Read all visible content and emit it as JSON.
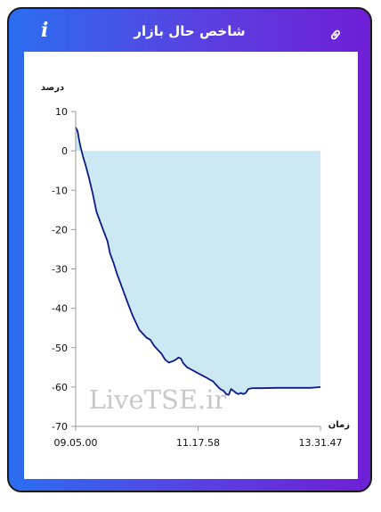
{
  "header": {
    "title": "شاخص حال بازار",
    "info_icon": "info-icon",
    "link_icon": "link-icon"
  },
  "colors": {
    "accent_start": "#2b6ef0",
    "accent_end": "#6e1fd6",
    "line": "#0d1a8c",
    "area": "#cce8f2"
  },
  "watermark": "LiveTSE.ir",
  "chart_data": {
    "type": "area",
    "ylabel": "درصد",
    "xlabel": "زمان",
    "ylim": [
      -70,
      10
    ],
    "yticks": [
      10,
      0,
      -10,
      -20,
      -30,
      -40,
      -50,
      -60,
      -70
    ],
    "xticks": [
      "09.05.00",
      "11.17.58",
      "13.31.47"
    ],
    "xlim": [
      0,
      1
    ],
    "grid": false,
    "legend": "none",
    "baseline": 0,
    "series": [
      {
        "points": [
          [
            0.0,
            6.0
          ],
          [
            0.008,
            5.0
          ],
          [
            0.015,
            2.5
          ],
          [
            0.022,
            0.5
          ],
          [
            0.03,
            -1.5
          ],
          [
            0.04,
            -3.5
          ],
          [
            0.055,
            -7.0
          ],
          [
            0.07,
            -11.0
          ],
          [
            0.085,
            -15.5
          ],
          [
            0.1,
            -18.0
          ],
          [
            0.115,
            -20.5
          ],
          [
            0.13,
            -23.0
          ],
          [
            0.14,
            -26.0
          ],
          [
            0.155,
            -28.5
          ],
          [
            0.17,
            -31.5
          ],
          [
            0.185,
            -34.0
          ],
          [
            0.2,
            -36.5
          ],
          [
            0.215,
            -39.0
          ],
          [
            0.23,
            -41.5
          ],
          [
            0.245,
            -43.5
          ],
          [
            0.26,
            -45.5
          ],
          [
            0.275,
            -46.5
          ],
          [
            0.29,
            -47.5
          ],
          [
            0.305,
            -48.0
          ],
          [
            0.32,
            -49.5
          ],
          [
            0.335,
            -50.5
          ],
          [
            0.35,
            -51.5
          ],
          [
            0.365,
            -53.0
          ],
          [
            0.38,
            -53.8
          ],
          [
            0.395,
            -53.5
          ],
          [
            0.41,
            -53.0
          ],
          [
            0.42,
            -52.5
          ],
          [
            0.43,
            -52.8
          ],
          [
            0.44,
            -54.0
          ],
          [
            0.455,
            -55.0
          ],
          [
            0.47,
            -55.5
          ],
          [
            0.485,
            -56.0
          ],
          [
            0.5,
            -56.5
          ],
          [
            0.515,
            -57.0
          ],
          [
            0.53,
            -57.5
          ],
          [
            0.545,
            -58.0
          ],
          [
            0.56,
            -58.5
          ],
          [
            0.575,
            -59.5
          ],
          [
            0.59,
            -60.5
          ],
          [
            0.605,
            -61.0
          ],
          [
            0.615,
            -61.8
          ],
          [
            0.625,
            -62.0
          ],
          [
            0.635,
            -60.5
          ],
          [
            0.645,
            -61.0
          ],
          [
            0.655,
            -61.5
          ],
          [
            0.665,
            -61.8
          ],
          [
            0.675,
            -61.5
          ],
          [
            0.685,
            -61.8
          ],
          [
            0.695,
            -61.5
          ],
          [
            0.705,
            -60.5
          ],
          [
            0.72,
            -60.3
          ],
          [
            0.76,
            -60.3
          ],
          [
            0.82,
            -60.2
          ],
          [
            0.9,
            -60.2
          ],
          [
            0.96,
            -60.2
          ],
          [
            1.0,
            -60.0
          ]
        ]
      }
    ]
  }
}
